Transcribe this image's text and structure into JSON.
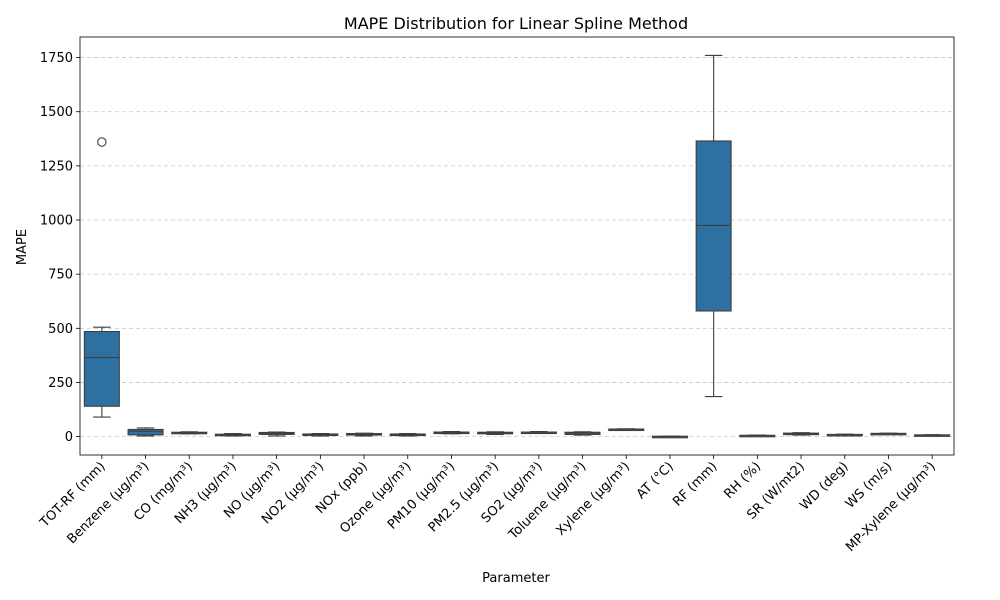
{
  "chart_data": {
    "type": "box",
    "title": "MAPE Distribution for Linear Spline Method",
    "xlabel": "Parameter",
    "ylabel": "MAPE",
    "ylim": [
      -85,
      1845
    ],
    "yticks": [
      0,
      250,
      500,
      750,
      1000,
      1250,
      1500,
      1750
    ],
    "grid": "y-dashed",
    "box_color": "#2e70a2",
    "categories": [
      "TOT-RF (mm)",
      "Benzene (µg/m³)",
      "CO (mg/m³)",
      "NH3 (µg/m³)",
      "NO (µg/m³)",
      "NO2 (µg/m³)",
      "NOx (ppb)",
      "Ozone (µg/m³)",
      "PM10 (µg/m³)",
      "PM2.5 (µg/m³)",
      "SO2 (µg/m³)",
      "Toluene (µg/m³)",
      "Xylene (µg/m³)",
      "AT (°C)",
      "RF (mm)",
      "RH (%)",
      "SR (W/mt2)",
      "WD (deg)",
      "WS (m/s)",
      "MP-Xylene (µg/m³)"
    ],
    "boxes": [
      {
        "min": 90,
        "q1": 140,
        "median": 365,
        "q3": 485,
        "max": 505,
        "outliers": [
          1360
        ]
      },
      {
        "min": 3,
        "q1": 8,
        "median": 25,
        "q3": 33,
        "max": 40,
        "outliers": []
      },
      {
        "min": 13,
        "q1": 15,
        "median": 18,
        "q3": 20,
        "max": 22,
        "outliers": []
      },
      {
        "min": 3,
        "q1": 6,
        "median": 9,
        "q3": 11,
        "max": 14,
        "outliers": []
      },
      {
        "min": 3,
        "q1": 10,
        "median": 15,
        "q3": 19,
        "max": 21,
        "outliers": []
      },
      {
        "min": 3,
        "q1": 6,
        "median": 10,
        "q3": 12,
        "max": 14,
        "outliers": []
      },
      {
        "min": 3,
        "q1": 7,
        "median": 11,
        "q3": 14,
        "max": 16,
        "outliers": []
      },
      {
        "min": 3,
        "q1": 6,
        "median": 9,
        "q3": 12,
        "max": 14,
        "outliers": []
      },
      {
        "min": 13,
        "q1": 15,
        "median": 18,
        "q3": 21,
        "max": 23,
        "outliers": []
      },
      {
        "min": 10,
        "q1": 13,
        "median": 17,
        "q3": 20,
        "max": 22,
        "outliers": []
      },
      {
        "min": 16,
        "q1": 18,
        "median": 20,
        "q3": 21,
        "max": 23,
        "outliers": []
      },
      {
        "min": 7,
        "q1": 10,
        "median": 16,
        "q3": 20,
        "max": 22,
        "outliers": []
      },
      {
        "min": 32,
        "q1": 33,
        "median": 34,
        "q3": 35,
        "max": 36,
        "outliers": []
      },
      {
        "min": 0,
        "q1": 0.5,
        "median": 1,
        "q3": 1.5,
        "max": 2,
        "outliers": []
      },
      {
        "min": 185,
        "q1": 580,
        "median": 975,
        "q3": 1365,
        "max": 1760,
        "outliers": []
      },
      {
        "min": 3,
        "q1": 4,
        "median": 5,
        "q3": 6,
        "max": 7,
        "outliers": []
      },
      {
        "min": 7,
        "q1": 10,
        "median": 13,
        "q3": 16,
        "max": 18,
        "outliers": []
      },
      {
        "min": 5,
        "q1": 7,
        "median": 9,
        "q3": 10,
        "max": 11,
        "outliers": []
      },
      {
        "min": 12,
        "q1": 13,
        "median": 14,
        "q3": 15,
        "max": 16,
        "outliers": []
      },
      {
        "min": 5,
        "q1": 6,
        "median": 7,
        "q3": 8,
        "max": 9,
        "outliers": []
      }
    ]
  }
}
